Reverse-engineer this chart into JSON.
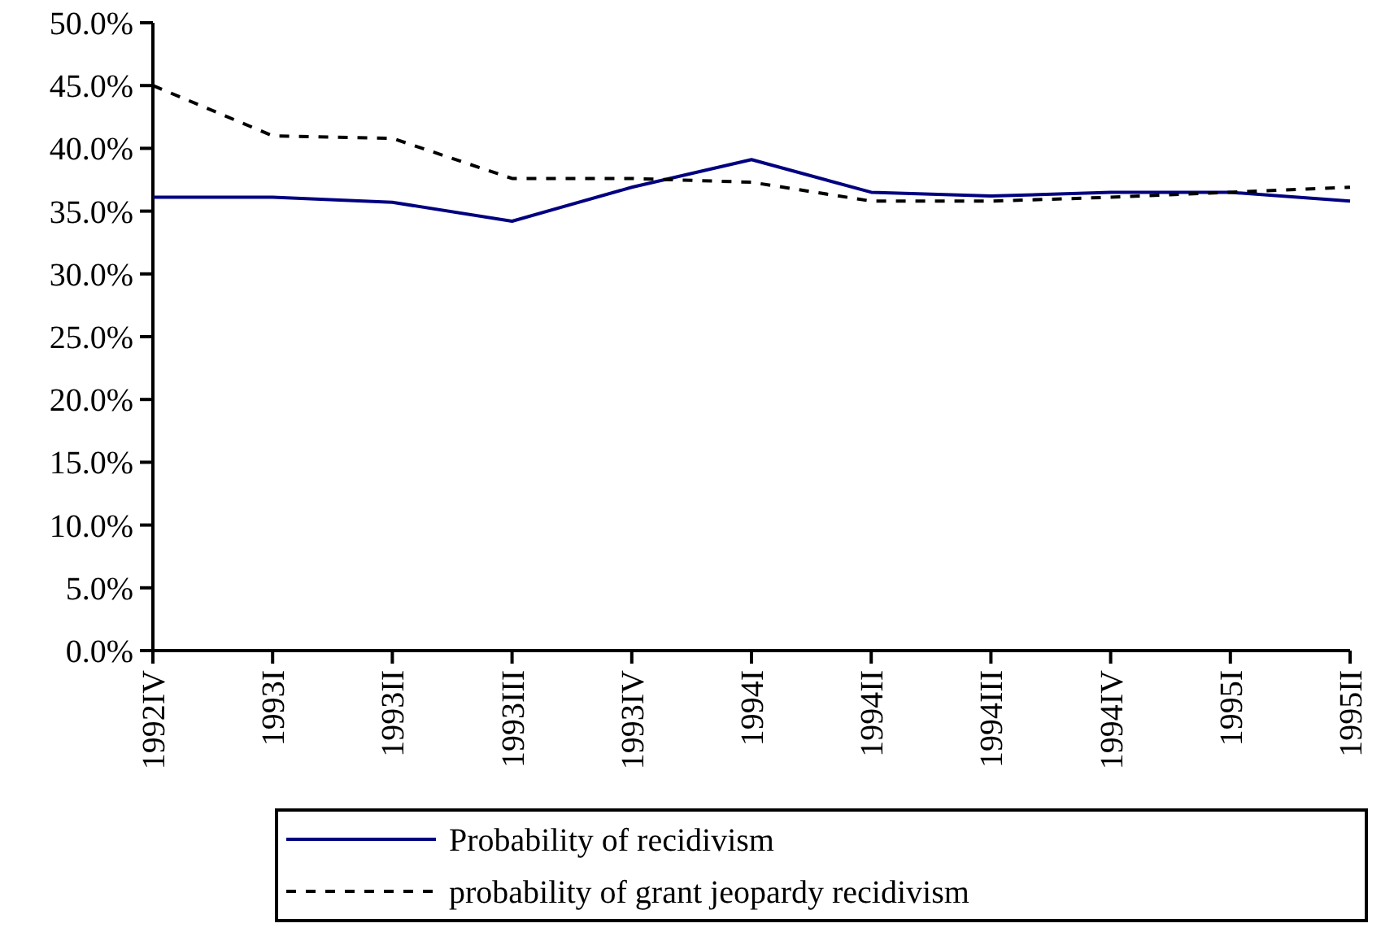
{
  "chart_data": {
    "type": "line",
    "categories": [
      "1992IV",
      "1993I",
      "1993II",
      "1993III",
      "1993IV",
      "1994I",
      "1994II",
      "1994III",
      "1994IV",
      "1995I",
      "1995II"
    ],
    "series": [
      {
        "name": "Probability of recidivism",
        "color": "#000080",
        "line_style": "solid",
        "values": [
          36.1,
          36.1,
          35.7,
          34.2,
          36.9,
          39.1,
          36.5,
          36.2,
          36.5,
          36.5,
          35.8
        ]
      },
      {
        "name": "probability of grant jeopardy recidivism",
        "color": "#000000",
        "line_style": "dashed",
        "values": [
          45.0,
          41.0,
          40.8,
          37.6,
          37.6,
          37.3,
          35.8,
          35.8,
          36.1,
          36.5,
          36.9
        ]
      }
    ],
    "ylim": [
      0,
      50
    ],
    "yticks": [
      {
        "value": 0,
        "label": "0.0%"
      },
      {
        "value": 5,
        "label": "5.0%"
      },
      {
        "value": 10,
        "label": "10.0%"
      },
      {
        "value": 15,
        "label": "15.0%"
      },
      {
        "value": 20,
        "label": "20.0%"
      },
      {
        "value": 25,
        "label": "25.0%"
      },
      {
        "value": 30,
        "label": "30.0%"
      },
      {
        "value": 35,
        "label": "35.0%"
      },
      {
        "value": 40,
        "label": "40.0%"
      },
      {
        "value": 45,
        "label": "45.0%"
      },
      {
        "value": 50,
        "label": "50.0%"
      }
    ],
    "grid": false,
    "legend": "bottom",
    "marker": "none"
  }
}
